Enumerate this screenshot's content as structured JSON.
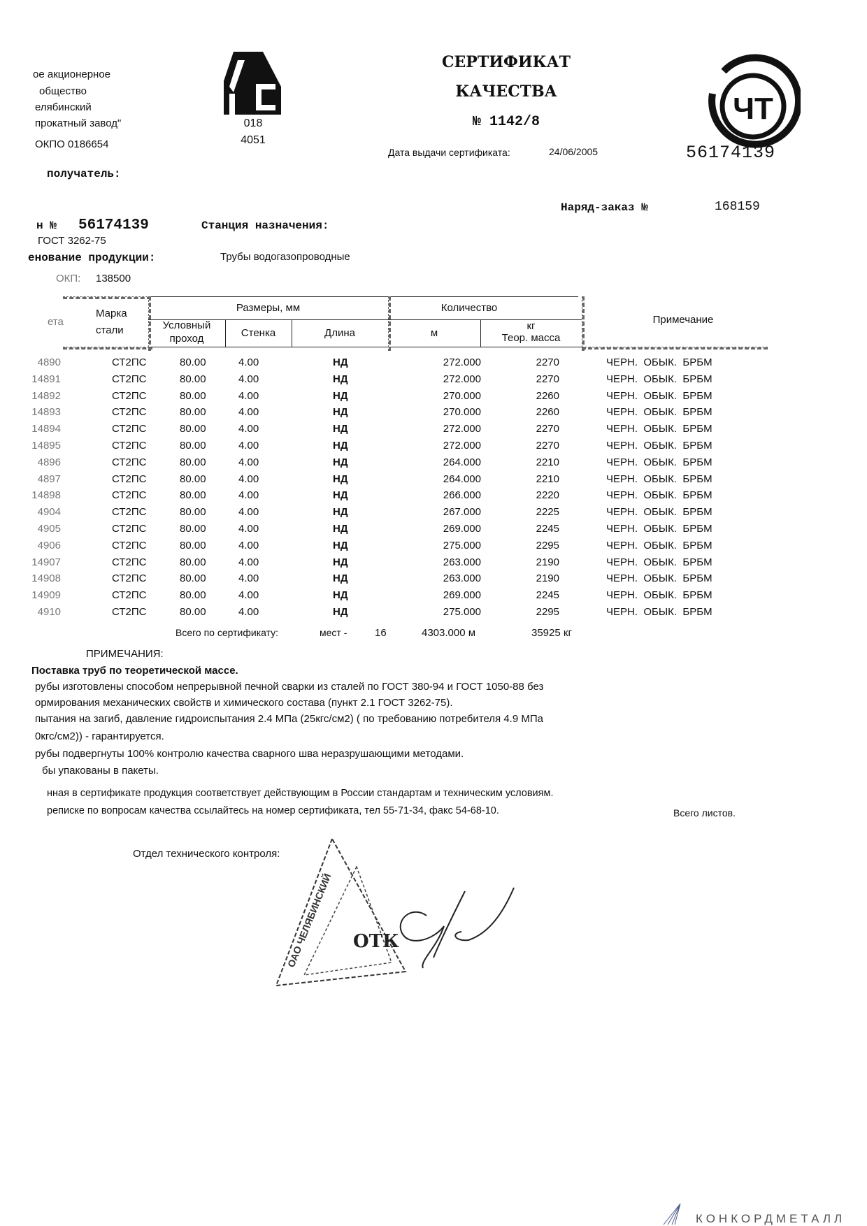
{
  "org": {
    "lines": [
      "ое акционерное",
      "общество",
      "елябинский",
      "прокатный завод\"",
      "ОКПО 0186654"
    ],
    "logo_letters": "МС",
    "code1": "018",
    "code2": "4051"
  },
  "title": {
    "line1": "СЕРТИФИКАТ",
    "line2": "КАЧЕСТВА",
    "number": "№ 1142/8",
    "date_label": "Дата выдачи сертификата:",
    "date_value": "24/06/2005"
  },
  "emblem": {
    "letters": "ЧТ",
    "number": "56174139"
  },
  "recipient_label": "получатель:",
  "order": {
    "label": "Наряд-заказ №",
    "value": "168159"
  },
  "wagon": {
    "label": "н №",
    "value": "56174139",
    "station_label": "Станция назначения:"
  },
  "gost": "ГОСТ 3262-75",
  "product": {
    "label": "енование продукции:",
    "value": "Трубы водогазопроводные"
  },
  "okp": {
    "label": "ОКП:",
    "value": "138500"
  },
  "table": {
    "headers": {
      "batch": "ета",
      "steel": [
        "Марка",
        "стали"
      ],
      "sizes": "Размеры, мм",
      "nominal": [
        "Условный",
        "проход"
      ],
      "wall": "Стенка",
      "length": "Длина",
      "quantity": "Количество",
      "meters": "м",
      "kg_unit": "кг",
      "mass": "Теор. масса",
      "note": "Примечание"
    },
    "rows": [
      {
        "batch": "4890",
        "steel": "СТ2ПС",
        "nominal": "80.00",
        "wall": "4.00",
        "length": "НД",
        "m": "272.000",
        "kg": "2270",
        "note": "ЧЕРН.  ОБЫК.  БРБМ"
      },
      {
        "batch": "14891",
        "steel": "СТ2ПС",
        "nominal": "80.00",
        "wall": "4.00",
        "length": "НД",
        "m": "272.000",
        "kg": "2270",
        "note": "ЧЕРН.  ОБЫК.  БРБМ"
      },
      {
        "batch": "14892",
        "steel": "СТ2ПС",
        "nominal": "80.00",
        "wall": "4.00",
        "length": "НД",
        "m": "270.000",
        "kg": "2260",
        "note": "ЧЕРН.  ОБЫК.  БРБМ"
      },
      {
        "batch": "14893",
        "steel": "СТ2ПС",
        "nominal": "80.00",
        "wall": "4.00",
        "length": "НД",
        "m": "270.000",
        "kg": "2260",
        "note": "ЧЕРН.  ОБЫК.  БРБМ"
      },
      {
        "batch": "14894",
        "steel": "СТ2ПС",
        "nominal": "80.00",
        "wall": "4.00",
        "length": "НД",
        "m": "272.000",
        "kg": "2270",
        "note": "ЧЕРН.  ОБЫК.  БРБМ"
      },
      {
        "batch": "14895",
        "steel": "СТ2ПС",
        "nominal": "80.00",
        "wall": "4.00",
        "length": "НД",
        "m": "272.000",
        "kg": "2270",
        "note": "ЧЕРН.  ОБЫК.  БРБМ"
      },
      {
        "batch": "4896",
        "steel": "СТ2ПС",
        "nominal": "80.00",
        "wall": "4.00",
        "length": "НД",
        "m": "264.000",
        "kg": "2210",
        "note": "ЧЕРН.  ОБЫК.  БРБМ"
      },
      {
        "batch": "4897",
        "steel": "СТ2ПС",
        "nominal": "80.00",
        "wall": "4.00",
        "length": "НД",
        "m": "264.000",
        "kg": "2210",
        "note": "ЧЕРН.  ОБЫК.  БРБМ"
      },
      {
        "batch": "14898",
        "steel": "СТ2ПС",
        "nominal": "80.00",
        "wall": "4.00",
        "length": "НД",
        "m": "266.000",
        "kg": "2220",
        "note": "ЧЕРН.  ОБЫК.  БРБМ"
      },
      {
        "batch": "4904",
        "steel": "СТ2ПС",
        "nominal": "80.00",
        "wall": "4.00",
        "length": "НД",
        "m": "267.000",
        "kg": "2225",
        "note": "ЧЕРН.  ОБЫК.  БРБМ"
      },
      {
        "batch": "4905",
        "steel": "СТ2ПС",
        "nominal": "80.00",
        "wall": "4.00",
        "length": "НД",
        "m": "269.000",
        "kg": "2245",
        "note": "ЧЕРН.  ОБЫК.  БРБМ"
      },
      {
        "batch": "4906",
        "steel": "СТ2ПС",
        "nominal": "80.00",
        "wall": "4.00",
        "length": "НД",
        "m": "275.000",
        "kg": "2295",
        "note": "ЧЕРН.  ОБЫК.  БРБМ"
      },
      {
        "batch": "14907",
        "steel": "СТ2ПС",
        "nominal": "80.00",
        "wall": "4.00",
        "length": "НД",
        "m": "263.000",
        "kg": "2190",
        "note": "ЧЕРН.  ОБЫК.  БРБМ"
      },
      {
        "batch": "14908",
        "steel": "СТ2ПС",
        "nominal": "80.00",
        "wall": "4.00",
        "length": "НД",
        "m": "263.000",
        "kg": "2190",
        "note": "ЧЕРН.  ОБЫК.  БРБМ"
      },
      {
        "batch": "14909",
        "steel": "СТ2ПС",
        "nominal": "80.00",
        "wall": "4.00",
        "length": "НД",
        "m": "269.000",
        "kg": "2245",
        "note": "ЧЕРН.  ОБЫК.  БРБМ"
      },
      {
        "batch": "4910",
        "steel": "СТ2ПС",
        "nominal": "80.00",
        "wall": "4.00",
        "length": "НД",
        "m": "275.000",
        "kg": "2295",
        "note": "ЧЕРН.  ОБЫК.  БРБМ"
      }
    ],
    "total": {
      "label": "Всего по сертификату:",
      "places_label": "мест -",
      "places": "16",
      "meters": "4303.000 м",
      "kg": "35925 кг"
    }
  },
  "notes": {
    "heading": "ПРИМЕЧАНИЯ:",
    "lines": [
      "Поставка труб по теоретической массе.",
      "рубы изготовлены способом непрерывной печной сварки из сталей по ГОСТ 380-94 и ГОСТ 1050-88 без",
      "ормирования механических свойств и химического состава (пункт 2.1 ГОСТ 3262-75).",
      "пытания на загиб,  давление гидроиспытания 2.4 МПа (25кгс/см2) ( по требованию потребителя 4.9 МПа",
      "0кгс/см2)) - гарантируется.",
      "рубы подвергнуты 100% контролю качества сварного шва неразрушающими методами.",
      "бы упакованы в пакеты."
    ]
  },
  "conformity": [
    "нная в сертификате продукция соответствует действующим в России стандартам и техническим условиям.",
    "реписке по вопросам качества ссылайтесь на номер сертификата, тел 55-71-34, факс 54-68-10."
  ],
  "sheets_label": "Всего листов.",
  "otk_label": "Отдел технического контроля:",
  "stamp": {
    "text": "ОАО ЧЕЛЯБИНСКИЙ",
    "center": "ОТК"
  },
  "watermark": "КОНКОРДМЕТАЛЛ",
  "colors": {
    "ink": "#111111",
    "watermark": "#4a5a8a"
  }
}
